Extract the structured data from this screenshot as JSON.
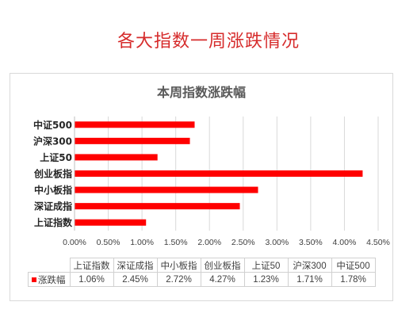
{
  "page": {
    "heading": "各大指数一周涨跌情况"
  },
  "chart_data": {
    "type": "bar",
    "orientation": "horizontal",
    "title": "本周指数涨跌幅",
    "categories": [
      "上证指数",
      "深证成指",
      "中小板指",
      "创业板指",
      "上证50",
      "沪深300",
      "中证500"
    ],
    "series": [
      {
        "name": "涨跌幅",
        "values": [
          1.06,
          2.45,
          2.72,
          4.27,
          1.23,
          1.71,
          1.78
        ],
        "labels": [
          "1.06%",
          "2.45%",
          "2.72%",
          "4.27%",
          "1.23%",
          "1.71%",
          "1.78%"
        ]
      }
    ],
    "x_ticks": [
      "0.00%",
      "0.50%",
      "1.00%",
      "1.50%",
      "2.00%",
      "2.50%",
      "3.00%",
      "3.50%",
      "4.00%",
      "4.50%"
    ],
    "xlim": [
      0,
      4.5
    ],
    "grid": true,
    "color": "#ff0000",
    "data_table": true
  }
}
